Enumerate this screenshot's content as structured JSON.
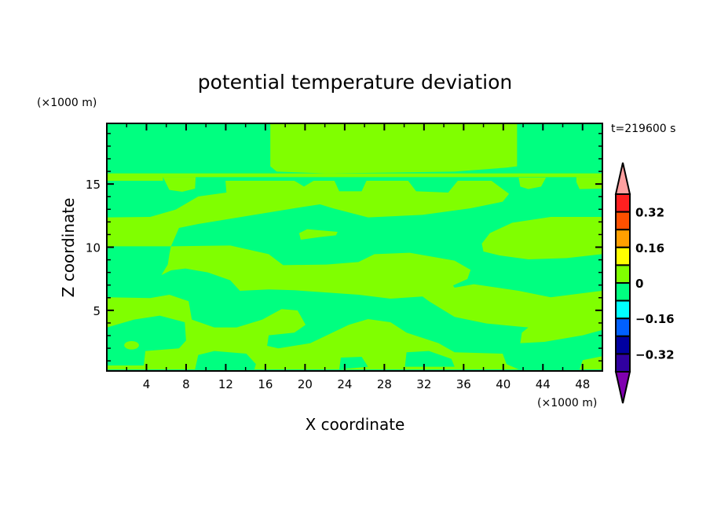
{
  "chart_data": {
    "type": "heatmap",
    "subtype": "filled-contour",
    "title": "potential temperature deviation",
    "xlabel": "X coordinate",
    "ylabel": "Z coordinate",
    "x_units": "(×1000 m)",
    "y_units": "(×1000 m)",
    "time_label": "t=219600 s",
    "xlim": [
      0,
      50
    ],
    "ylim": [
      0.2,
      19.8
    ],
    "x_ticks": [
      4,
      8,
      12,
      16,
      20,
      24,
      28,
      32,
      36,
      40,
      44,
      48
    ],
    "x_tick_labels": [
      "4",
      "8",
      "12",
      "16",
      "20",
      "24",
      "28",
      "32",
      "36",
      "40",
      "44",
      "48"
    ],
    "x_minor_step": 2,
    "y_ticks": [
      5,
      10,
      15
    ],
    "y_tick_labels": [
      "5",
      "10",
      "15"
    ],
    "y_minor_step": 1,
    "dominant_levels": [
      "-0.08 to 0",
      "0 to 0.08"
    ],
    "colorbar": {
      "levels": [
        0.4,
        0.32,
        0.24,
        0.16,
        0.08,
        0,
        -0.08,
        -0.16,
        -0.24,
        -0.32,
        -0.4
      ],
      "labels": [
        "0.32",
        "0.16",
        "0",
        "−0.16",
        "−0.32"
      ],
      "label_values": [
        0.32,
        0.16,
        0,
        -0.16,
        -0.32
      ],
      "colors": [
        "#ff2020",
        "#ff5000",
        "#ffa000",
        "#ffff00",
        "#80ff00",
        "#00ff80",
        "#00ffff",
        "#0060ff",
        "#0000a0",
        "#3000a0"
      ],
      "over_color": "#ffa0a0",
      "under_color": "#8000b0",
      "extend": "both"
    }
  }
}
